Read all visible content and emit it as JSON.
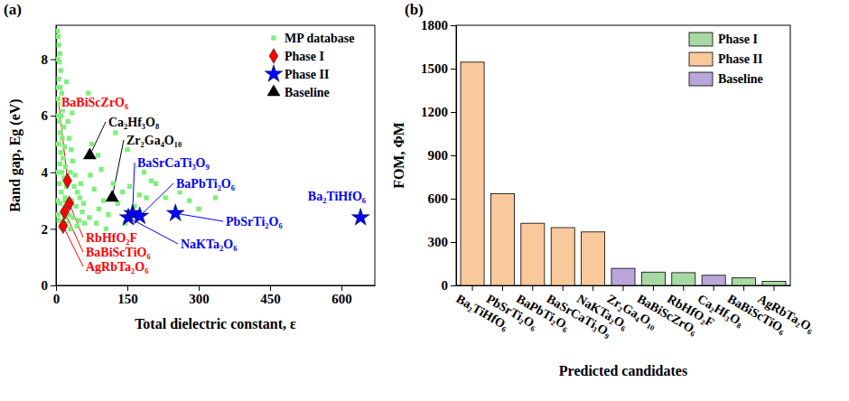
{
  "chart_data": [
    {
      "type": "scatter",
      "title": "(a)",
      "xlabel": "Total dielectric constant, ε",
      "ylabel": "Band gap, Eg (eV)",
      "xlim": [
        0,
        670
      ],
      "xticks": [
        0,
        150,
        300,
        450,
        600
      ],
      "ylim": [
        0,
        9.2
      ],
      "yticks": [
        0,
        2,
        4,
        6,
        8
      ],
      "legend": "upper right",
      "series": [
        {
          "name": "MP database",
          "color": "#7cf07c",
          "marker": "square",
          "x": [
            5,
            6,
            8,
            7,
            10,
            6,
            9,
            12,
            5,
            8,
            14,
            11,
            7,
            16,
            9,
            13,
            6,
            18,
            10,
            15,
            8,
            20,
            12,
            17,
            7,
            22,
            11,
            19,
            9,
            24,
            14,
            27,
            6,
            21,
            16,
            30,
            10,
            25,
            28,
            32,
            35,
            30,
            40,
            38,
            45,
            33,
            50,
            42,
            55,
            36,
            48,
            60,
            44,
            58,
            52,
            26,
            22,
            34,
            68,
            72,
            80,
            90,
            85,
            100,
            110,
            95,
            120,
            130,
            140,
            155,
            165,
            175,
            190,
            200,
            185,
            210,
            230,
            260,
            280,
            300,
            335,
            125,
            150,
            170,
            145,
            105,
            70,
            75,
            88,
            3,
            4,
            3,
            4,
            3,
            4,
            3,
            4,
            20,
            18
          ],
          "values": [
            8.8,
            8.5,
            8.2,
            7.9,
            7.6,
            7.3,
            7.0,
            6.8,
            6.6,
            6.4,
            6.2,
            6.0,
            5.8,
            5.6,
            5.4,
            5.2,
            5.0,
            4.9,
            4.7,
            4.5,
            4.3,
            4.2,
            4.0,
            3.8,
            3.6,
            3.5,
            3.3,
            3.1,
            2.9,
            2.8,
            2.6,
            2.5,
            2.3,
            2.2,
            2.1,
            2.0,
            2.05,
            5.8,
            5.2,
            4.8,
            4.4,
            4.0,
            3.9,
            3.5,
            3.3,
            3.0,
            3.1,
            2.8,
            2.6,
            2.4,
            2.3,
            2.2,
            2.1,
            2.9,
            3.6,
            6.5,
            7.2,
            6.1,
            6.8,
            3.9,
            3.4,
            2.7,
            2.2,
            3.0,
            2.5,
            4.1,
            3.6,
            2.9,
            3.3,
            3.5,
            2.8,
            3.2,
            3.1,
            3.7,
            4.0,
            3.6,
            3.1,
            3.3,
            3.0,
            2.7,
            3.1,
            5.4,
            4.8,
            4.2,
            2.2,
            2.0,
            2.4,
            5.0,
            4.6,
            9.0,
            8.0,
            7.0,
            6.0,
            5.0,
            4.0,
            3.0,
            2.5,
            3.0,
            2.4
          ]
        },
        {
          "name": "Phase I",
          "color": "#ff0000",
          "marker": "diamond",
          "x": [
            24,
            28,
            18,
            15
          ],
          "values": [
            3.7,
            2.9,
            2.6,
            2.1
          ],
          "labels": [
            "BaBiScZrO₆",
            "RbHfO₂F",
            "BaBiScTiO₆",
            "AgRbTa₂O₆"
          ]
        },
        {
          "name": "Phase II",
          "color": "#0000ff",
          "marker": "star",
          "x": [
            152,
            161,
            176,
            251,
            640
          ],
          "values": [
            2.4,
            2.55,
            2.45,
            2.55,
            2.4
          ],
          "labels": [
            "NaKTa₂O₆",
            "BaSrCaTi₃O₉",
            "BaPbTi₂O₆",
            "PbSrTi₂O₆",
            "Ba₂TiHfO₆"
          ]
        },
        {
          "name": "Baseline",
          "color": "#000000",
          "marker": "triangle",
          "x": [
            71,
            118
          ],
          "values": [
            4.6,
            3.1
          ],
          "labels": [
            "Ca₂Hf₃O₈",
            "Zr₂Ga₄O₁₀"
          ]
        }
      ]
    },
    {
      "type": "bar",
      "title": "(b)",
      "xlabel": "Predicted candidates",
      "ylabel": "FOM, ΦM",
      "ylim": [
        0,
        1800
      ],
      "yticks": [
        0,
        300,
        600,
        900,
        1200,
        1500,
        1800
      ],
      "legend": "upper right",
      "categories": [
        "Ba₂TiHfO₆",
        "PbSrTi₂O₆",
        "BaPbTi₂O₆",
        "BaSrCaTi₃O₉",
        "NaKTa₂O₆",
        "Zr₂Ga₄O₁₀",
        "BaBiScZrO₆",
        "RbHfO₂F",
        "Ca₂Hf₃O₈",
        "BaBiScTiO₆",
        "AgRbTa₂O₆"
      ],
      "series": [
        {
          "name": "Phase I",
          "color": "#a9d9a2",
          "values": [
            null,
            null,
            null,
            null,
            null,
            null,
            92,
            88,
            null,
            52,
            28
          ]
        },
        {
          "name": "Phase II",
          "color": "#f9c99b",
          "values": [
            1545,
            635,
            430,
            400,
            370,
            null,
            null,
            null,
            null,
            null,
            null
          ]
        },
        {
          "name": "Baseline",
          "color": "#b9a7d9",
          "values": [
            null,
            null,
            null,
            null,
            null,
            118,
            null,
            null,
            70,
            null,
            null
          ]
        }
      ]
    }
  ]
}
